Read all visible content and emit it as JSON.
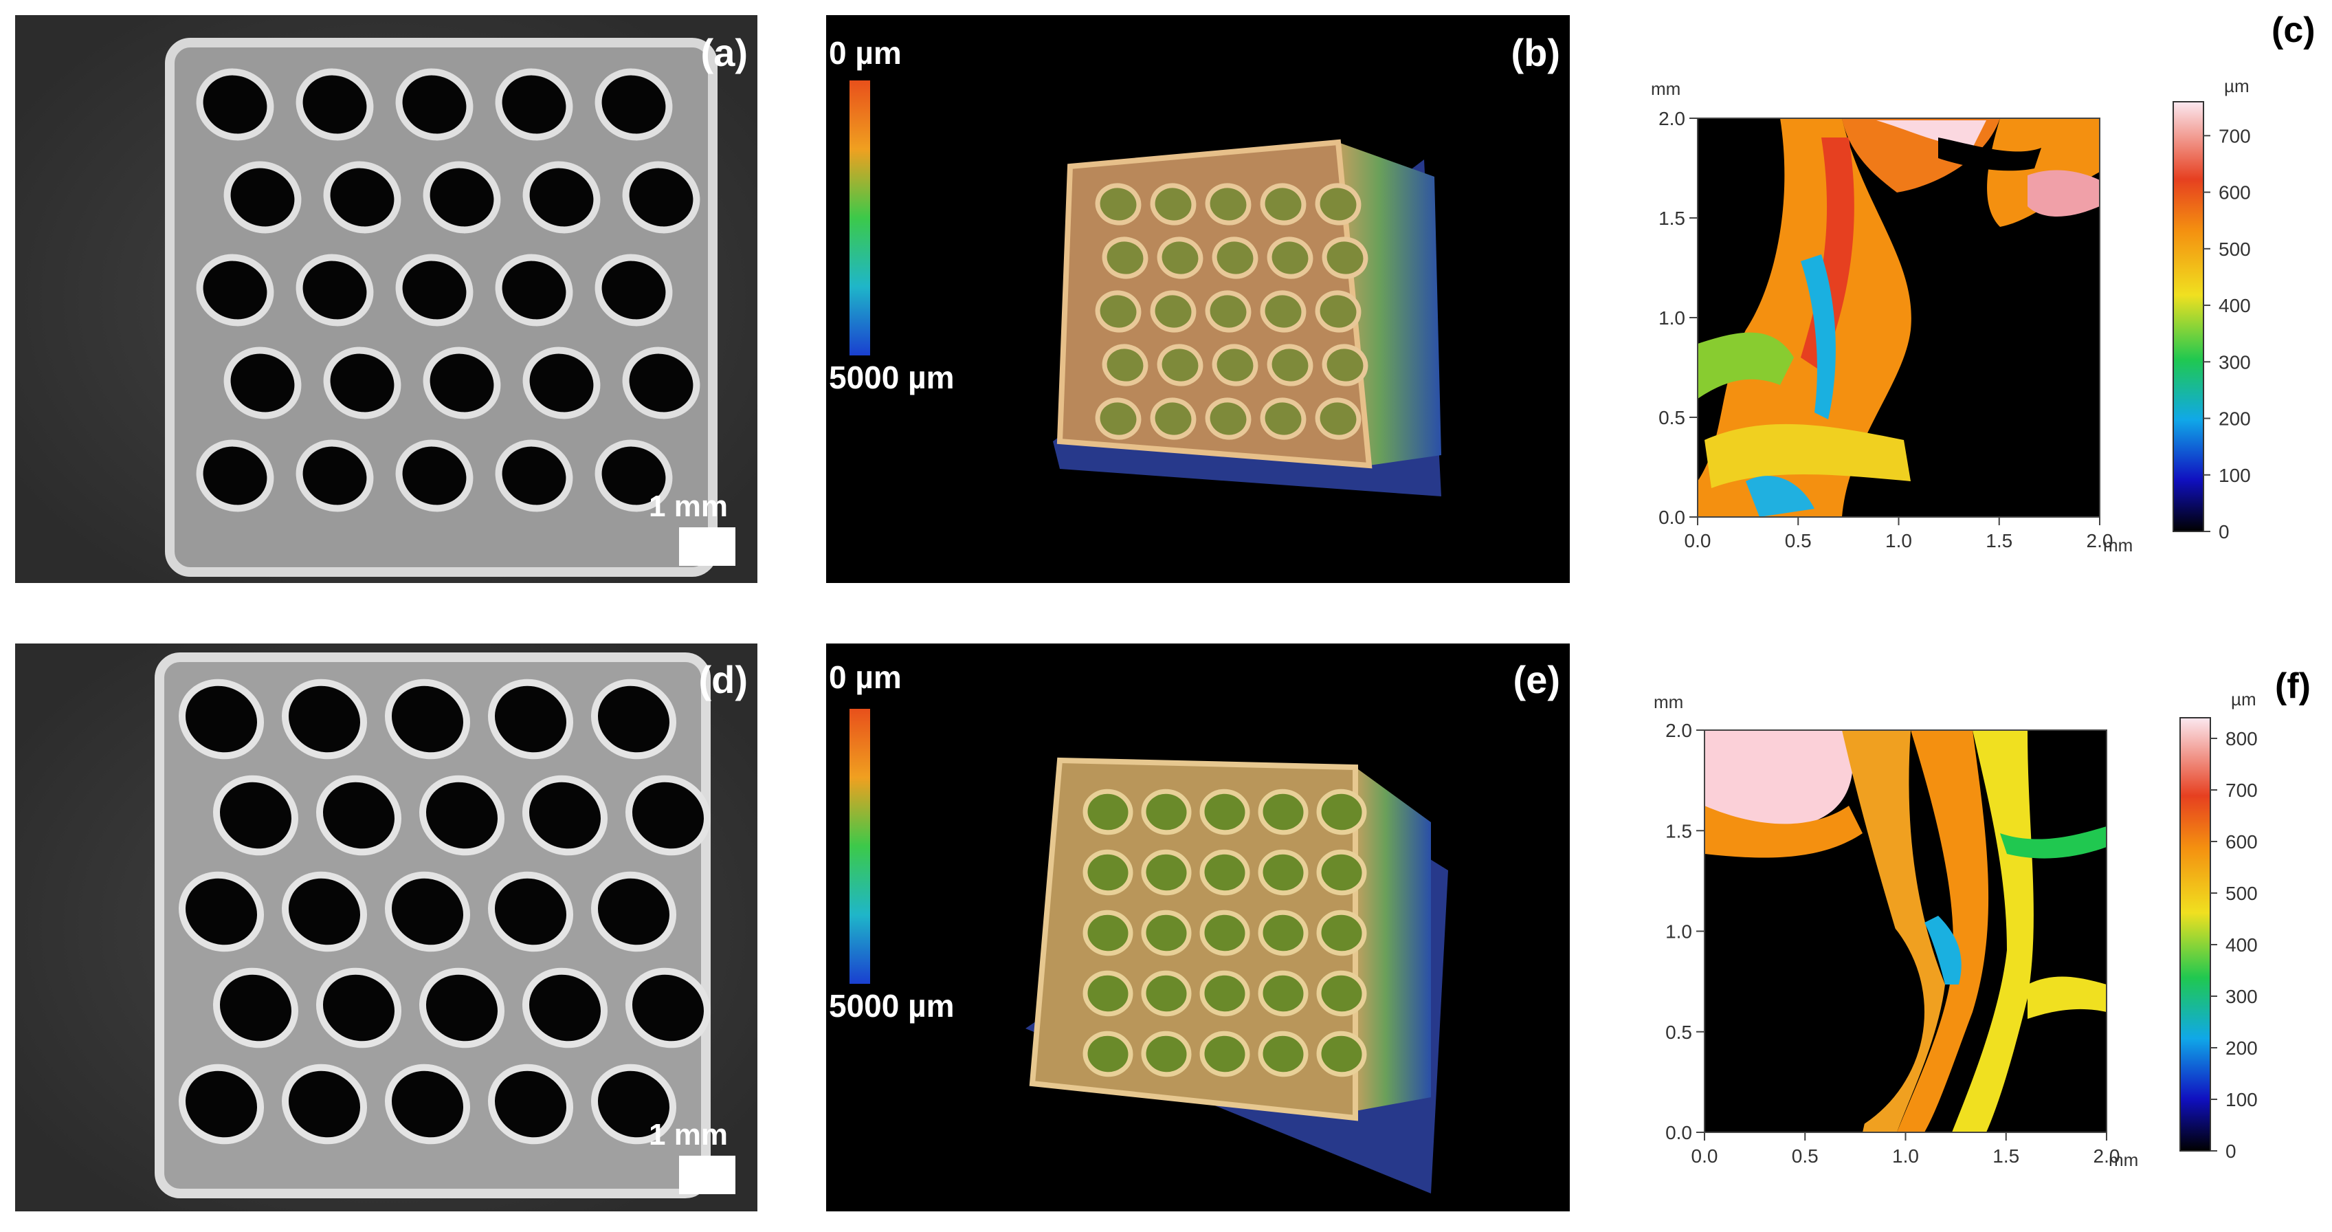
{
  "panels": {
    "a": {
      "label": "(a)",
      "scale_text": "1 mm"
    },
    "b": {
      "label": "(b)",
      "cb_top": "0 µm",
      "cb_bottom": "5000 µm"
    },
    "c": {
      "label": "(c)",
      "axis_unit_y": "mm",
      "axis_unit_x": "mm",
      "cb_unit": "µm"
    },
    "d": {
      "label": "(d)",
      "scale_text": "1 mm"
    },
    "e": {
      "label": "(e)",
      "cb_top": "0 µm",
      "cb_bottom": "5000 µm"
    },
    "f": {
      "label": "(f)",
      "axis_unit_y": "mm",
      "axis_unit_x": "mm",
      "cb_unit": "µm"
    }
  },
  "chart_data": [
    {
      "type": "heatmap",
      "panel": "(c)",
      "x_ticks": [
        "0.0",
        "0.5",
        "1.0",
        "1.5",
        "2.0"
      ],
      "y_ticks": [
        "0.0",
        "0.5",
        "1.0",
        "1.5",
        "2.0"
      ],
      "xlim": [
        0,
        2.0
      ],
      "ylim": [
        0,
        2.0
      ],
      "colorbar_ticks": [
        "0",
        "100",
        "200",
        "300",
        "400",
        "500",
        "600",
        "700"
      ],
      "colorbar_range": [
        0,
        760
      ]
    },
    {
      "type": "heatmap",
      "panel": "(f)",
      "x_ticks": [
        "0.0",
        "0.5",
        "1.0",
        "1.5",
        "2.0"
      ],
      "y_ticks": [
        "0.0",
        "0.5",
        "1.0",
        "1.5",
        "2.0"
      ],
      "xlim": [
        0,
        2.0
      ],
      "ylim": [
        0,
        2.0
      ],
      "colorbar_ticks": [
        "0",
        "100",
        "200",
        "300",
        "400",
        "500",
        "600",
        "700",
        "800"
      ],
      "colorbar_range": [
        0,
        840
      ]
    }
  ],
  "colors": {
    "pore": "#000000",
    "strut_light": "#bdbdbd",
    "scan_bg": "#000000"
  }
}
